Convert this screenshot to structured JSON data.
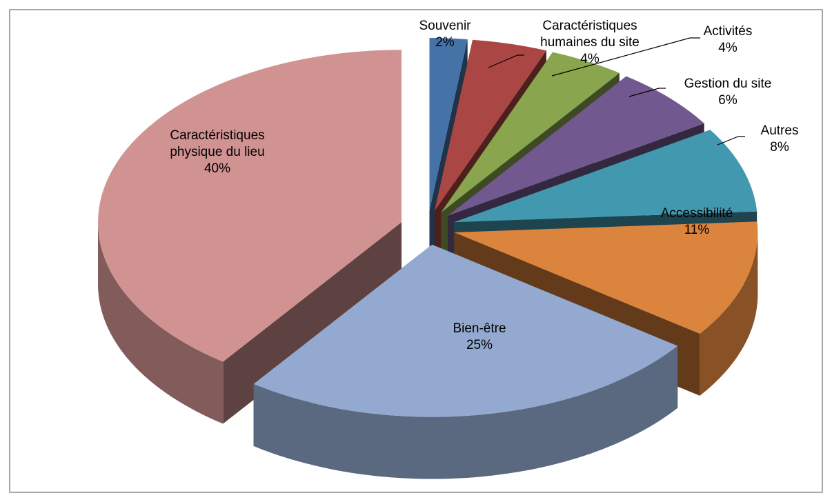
{
  "chart_data": {
    "type": "pie3d",
    "categories": [
      "Souvenir",
      "Caractéristiques humaines du site",
      "Activités",
      "Gestion du site",
      "Autres",
      "Accessibilité",
      "Bien-être",
      "Caractéristiques physique du lieu"
    ],
    "values": [
      2,
      4,
      4,
      6,
      8,
      11,
      25,
      40
    ],
    "value_labels": [
      "2%",
      "4%",
      "4%",
      "6%",
      "8%",
      "11%",
      "25%",
      "40%"
    ],
    "colors": [
      "#4572a7",
      "#aa4643",
      "#89a54e",
      "#71588f",
      "#4198af",
      "#db843d",
      "#93a9cf",
      "#d19392"
    ]
  }
}
